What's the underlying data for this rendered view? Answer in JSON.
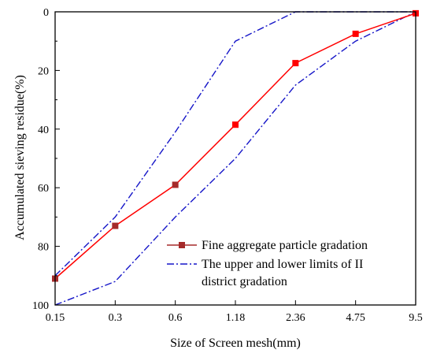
{
  "chart_data": {
    "type": "line",
    "title": "",
    "xlabel": "Size of Screen mesh(mm)",
    "ylabel": "Accumulated sieving residue(%)",
    "categories": [
      "0.15",
      "0.3",
      "0.6",
      "1.18",
      "2.36",
      "4.75",
      "9.5"
    ],
    "y_ticks": [
      "0",
      "20",
      "40",
      "60",
      "80",
      "100"
    ],
    "ylim": [
      100,
      0
    ],
    "y_inverted": true,
    "grid": false,
    "legend_position": "bottom-right",
    "series": [
      {
        "name": "Fine aggregate particle gradation",
        "color": "#ff0000",
        "marker_color": "#a52a2a",
        "style": "solid",
        "points": [
          {
            "x": 0,
            "y": 91
          },
          {
            "x": 1,
            "y": 73
          },
          {
            "x": 2,
            "y": 59
          },
          {
            "x": 3,
            "y": 38.5
          },
          {
            "x": 4,
            "y": 17.5
          },
          {
            "x": 5,
            "y": 7.5
          },
          {
            "x": 6,
            "y": 0.5
          }
        ]
      },
      {
        "name": "The upper and lower limits of II district gradation",
        "legend_line1": "The upper and lower limits of II",
        "legend_line2": "district gradation",
        "color": "#1515c8",
        "style": "dash-dot",
        "upper": [
          {
            "x": 0,
            "y": 90
          },
          {
            "x": 1,
            "y": 70
          },
          {
            "x": 2,
            "y": 41
          },
          {
            "x": 3,
            "y": 10
          },
          {
            "x": 4,
            "y": 0
          },
          {
            "x": 5,
            "y": 0
          },
          {
            "x": 6,
            "y": 0
          }
        ],
        "lower": [
          {
            "x": 0,
            "y": 100
          },
          {
            "x": 1,
            "y": 92
          },
          {
            "x": 2,
            "y": 70
          },
          {
            "x": 3,
            "y": 50
          },
          {
            "x": 4,
            "y": 25
          },
          {
            "x": 5,
            "y": 10
          },
          {
            "x": 6,
            "y": 0
          }
        ]
      }
    ]
  }
}
